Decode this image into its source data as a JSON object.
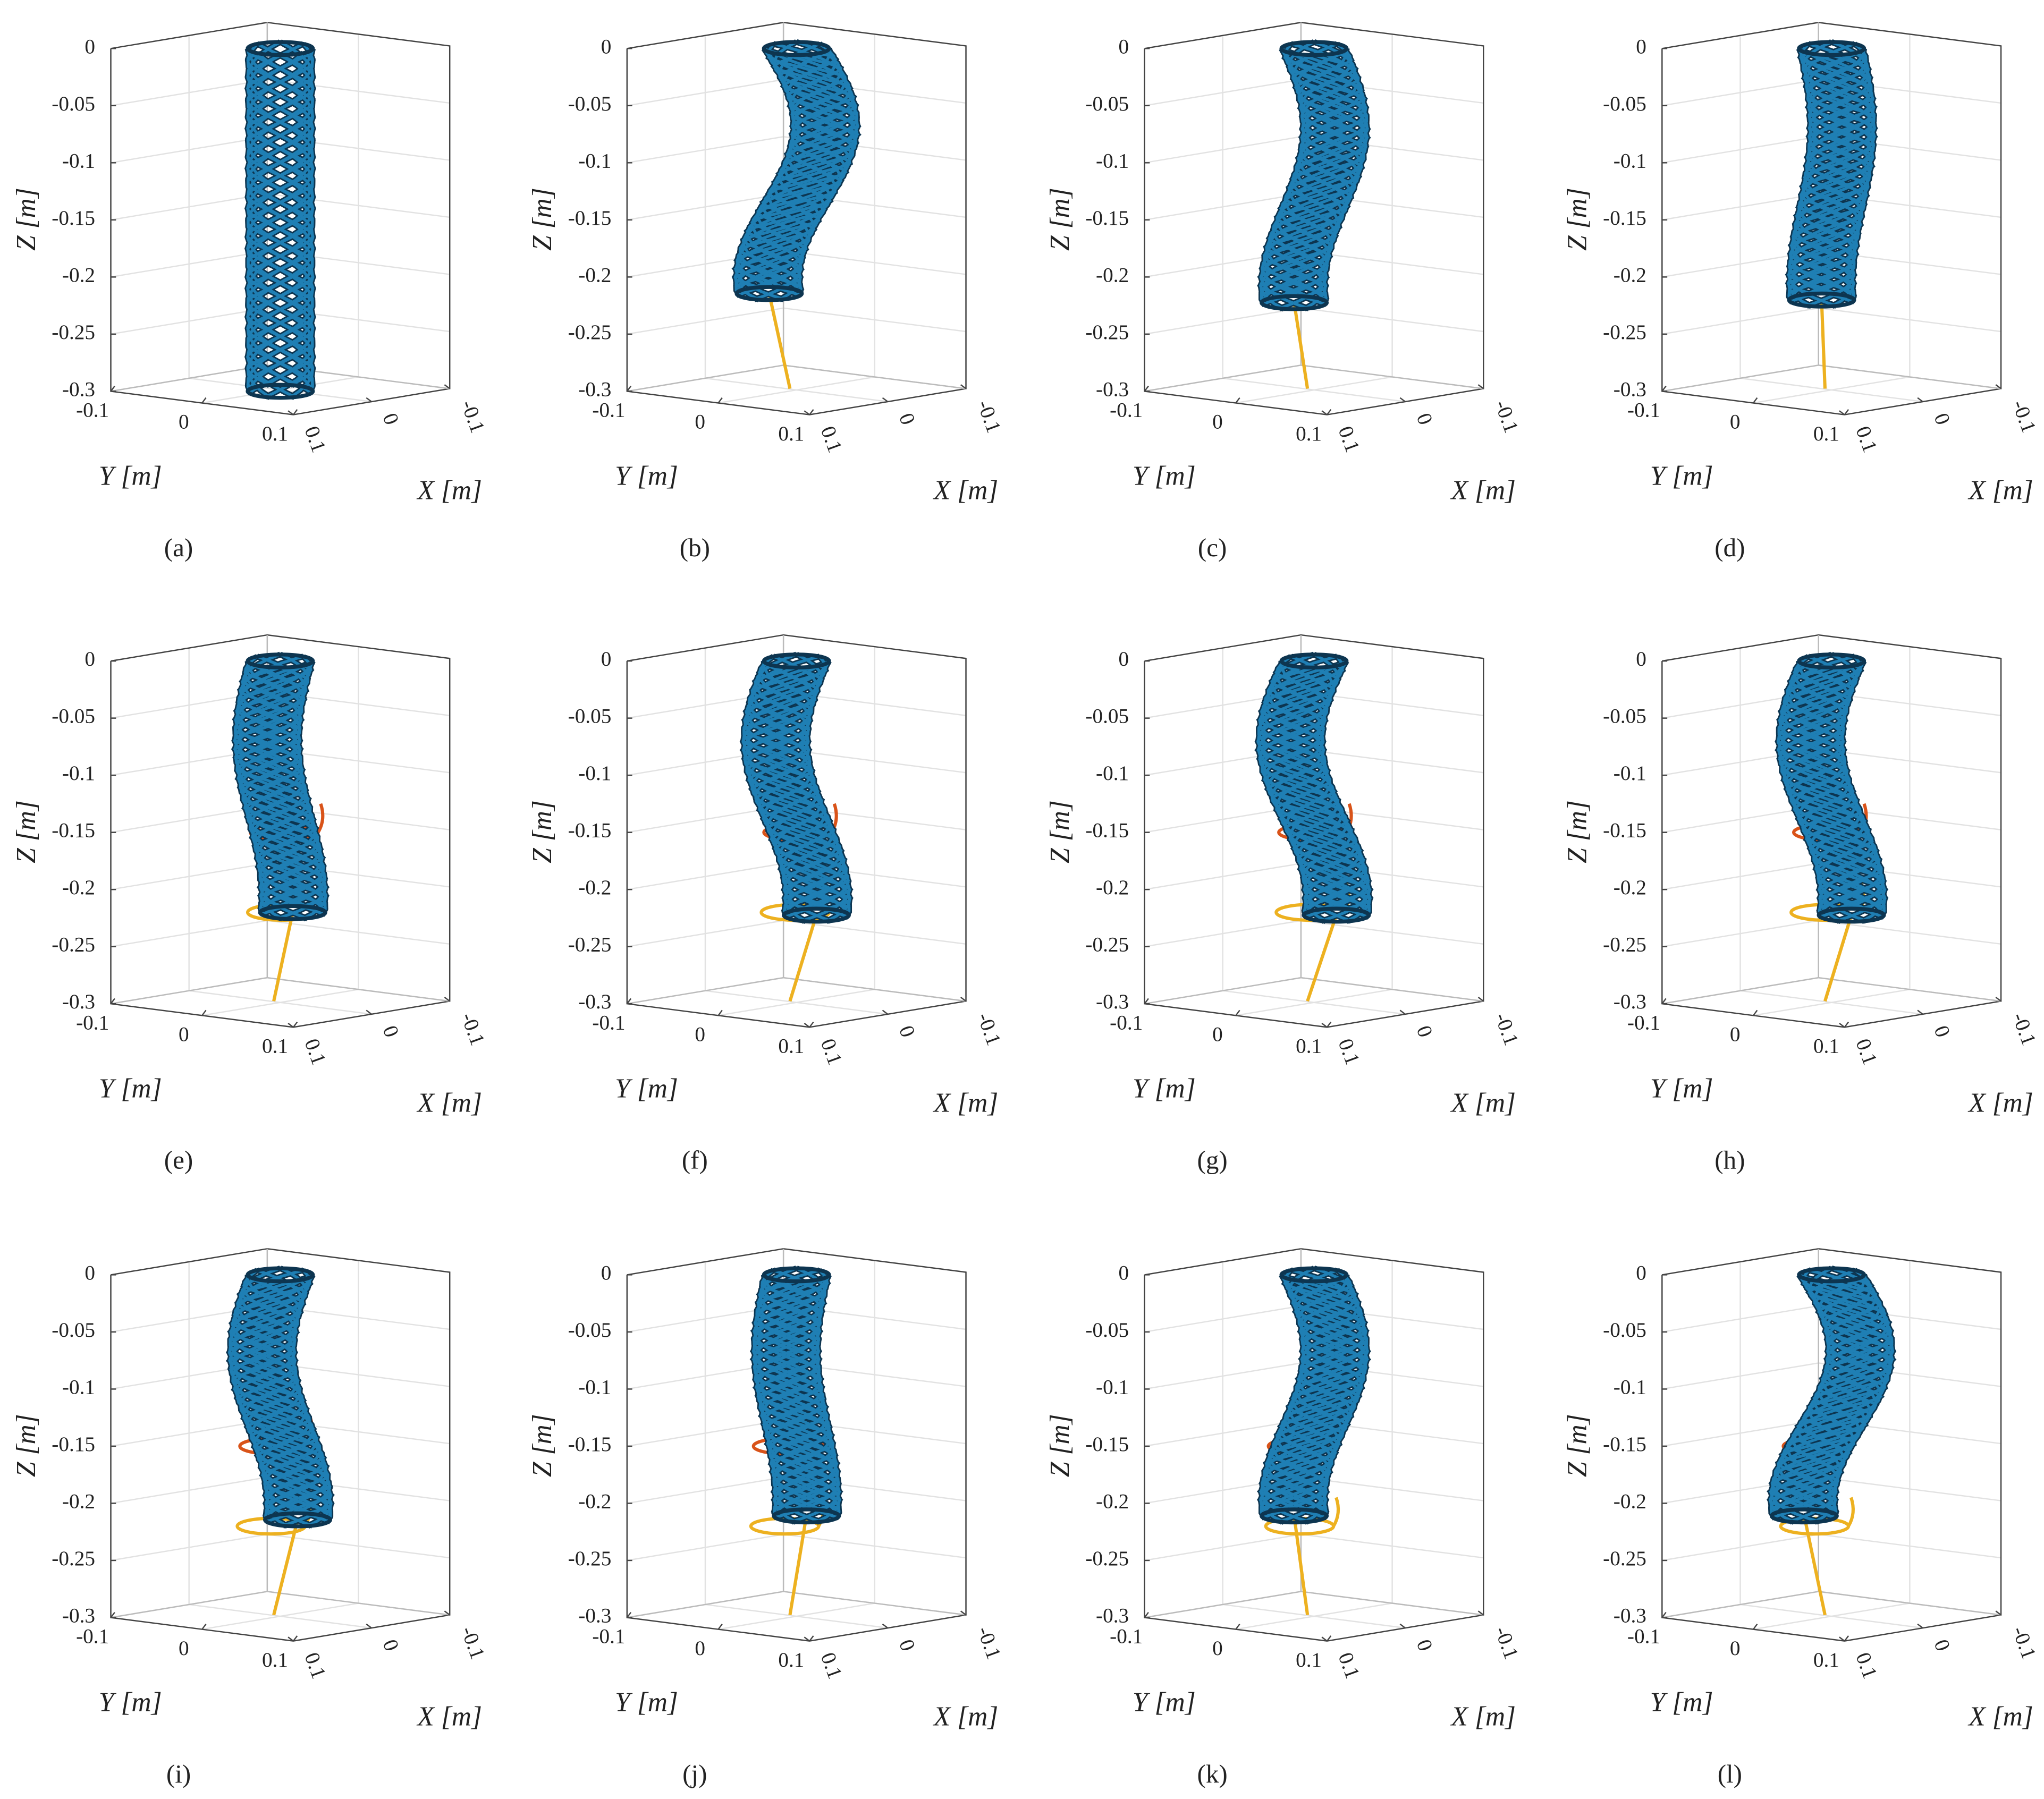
{
  "chart_data": [
    {
      "type": "lattice",
      "caption": "(a)",
      "xlabel": "X [m]",
      "ylabel": "Y [m]",
      "zlabel": "Z [m]",
      "color": "#1f7fb4",
      "xlim": [
        -0.1,
        0.1
      ],
      "ylim": [
        -0.1,
        0.1
      ],
      "zlim": [
        -0.3,
        0
      ],
      "xticks": [
        -0.1,
        0,
        0.1
      ],
      "yticks": [
        -0.1,
        0,
        0.1
      ],
      "zticks": [
        -0.3,
        -0.25,
        -0.2,
        -0.15,
        -0.1,
        -0.05,
        0
      ],
      "grid": true
    },
    {
      "type": "lattice",
      "caption": "(b)",
      "xlabel": "X [m]",
      "ylabel": "Y [m]",
      "zlabel": "Z [m]",
      "color": "#1f7fb4",
      "xlim": [
        -0.1,
        0.1
      ],
      "ylim": [
        -0.1,
        0.1
      ],
      "zlim": [
        -0.3,
        0
      ],
      "xticks": [
        -0.1,
        0,
        0.1
      ],
      "yticks": [
        -0.1,
        0,
        0.1
      ],
      "zticks": [
        -0.3,
        -0.25,
        -0.2,
        -0.15,
        -0.1,
        -0.05,
        0
      ],
      "grid": true
    },
    {
      "type": "lattice",
      "caption": "(c)",
      "xlabel": "X [m]",
      "ylabel": "Y [m]",
      "zlabel": "Z [m]",
      "color": "#1f7fb4",
      "xlim": [
        -0.1,
        0.1
      ],
      "ylim": [
        -0.1,
        0.1
      ],
      "zlim": [
        -0.3,
        0
      ],
      "xticks": [
        -0.1,
        0,
        0.1
      ],
      "yticks": [
        -0.1,
        0,
        0.1
      ],
      "zticks": [
        -0.3,
        -0.25,
        -0.2,
        -0.15,
        -0.1,
        -0.05,
        0
      ],
      "grid": true
    },
    {
      "type": "lattice",
      "caption": "(d)",
      "xlabel": "X [m]",
      "ylabel": "Y [m]",
      "zlabel": "Z [m]",
      "color": "#1f7fb4",
      "xlim": [
        -0.1,
        0.1
      ],
      "ylim": [
        -0.1,
        0.1
      ],
      "zlim": [
        -0.3,
        0
      ],
      "xticks": [
        -0.1,
        0,
        0.1
      ],
      "yticks": [
        -0.1,
        0,
        0.1
      ],
      "zticks": [
        -0.3,
        -0.25,
        -0.2,
        -0.15,
        -0.1,
        -0.05,
        0
      ],
      "grid": true
    },
    {
      "type": "lattice",
      "caption": "(e)",
      "xlabel": "X [m]",
      "ylabel": "Y [m]",
      "zlabel": "Z [m]",
      "color": "#1f7fb4",
      "xlim": [
        -0.1,
        0.1
      ],
      "ylim": [
        -0.1,
        0.1
      ],
      "zlim": [
        -0.3,
        0
      ],
      "xticks": [
        -0.1,
        0,
        0.1
      ],
      "yticks": [
        -0.1,
        0,
        0.1
      ],
      "zticks": [
        -0.3,
        -0.25,
        -0.2,
        -0.15,
        -0.1,
        -0.05,
        0
      ],
      "grid": true
    },
    {
      "type": "lattice",
      "caption": "(f)",
      "xlabel": "X [m]",
      "ylabel": "Y [m]",
      "zlabel": "Z [m]",
      "color": "#1f7fb4",
      "xlim": [
        -0.1,
        0.1
      ],
      "ylim": [
        -0.1,
        0.1
      ],
      "zlim": [
        -0.3,
        0
      ],
      "xticks": [
        -0.1,
        0,
        0.1
      ],
      "yticks": [
        -0.1,
        0,
        0.1
      ],
      "zticks": [
        -0.3,
        -0.25,
        -0.2,
        -0.15,
        -0.1,
        -0.05,
        0
      ],
      "grid": true
    },
    {
      "type": "lattice",
      "caption": "(g)",
      "xlabel": "X [m]",
      "ylabel": "Y [m]",
      "zlabel": "Z [m]",
      "color": "#1f7fb4",
      "xlim": [
        -0.1,
        0.1
      ],
      "ylim": [
        -0.1,
        0.1
      ],
      "zlim": [
        -0.3,
        0
      ],
      "xticks": [
        -0.1,
        0,
        0.1
      ],
      "yticks": [
        -0.1,
        0,
        0.1
      ],
      "zticks": [
        -0.3,
        -0.25,
        -0.2,
        -0.15,
        -0.1,
        -0.05,
        0
      ],
      "grid": true
    },
    {
      "type": "lattice",
      "caption": "(h)",
      "xlabel": "X [m]",
      "ylabel": "Y [m]",
      "zlabel": "Z [m]",
      "color": "#1f7fb4",
      "xlim": [
        -0.1,
        0.1
      ],
      "ylim": [
        -0.1,
        0.1
      ],
      "zlim": [
        -0.3,
        0
      ],
      "xticks": [
        -0.1,
        0,
        0.1
      ],
      "yticks": [
        -0.1,
        0,
        0.1
      ],
      "zticks": [
        -0.3,
        -0.25,
        -0.2,
        -0.15,
        -0.1,
        -0.05,
        0
      ],
      "grid": true
    },
    {
      "type": "lattice",
      "caption": "(i)",
      "xlabel": "X [m]",
      "ylabel": "Y [m]",
      "zlabel": "Z [m]",
      "color": "#1f7fb4",
      "xlim": [
        -0.1,
        0.1
      ],
      "ylim": [
        -0.1,
        0.1
      ],
      "zlim": [
        -0.3,
        0
      ],
      "xticks": [
        -0.1,
        0,
        0.1
      ],
      "yticks": [
        -0.1,
        0,
        0.1
      ],
      "zticks": [
        -0.3,
        -0.25,
        -0.2,
        -0.15,
        -0.1,
        -0.05,
        0
      ],
      "grid": true
    },
    {
      "type": "lattice",
      "caption": "(j)",
      "xlabel": "X [m]",
      "ylabel": "Y [m]",
      "zlabel": "Z [m]",
      "color": "#1f7fb4",
      "xlim": [
        -0.1,
        0.1
      ],
      "ylim": [
        -0.1,
        0.1
      ],
      "zlim": [
        -0.3,
        0
      ],
      "xticks": [
        -0.1,
        0,
        0.1
      ],
      "yticks": [
        -0.1,
        0,
        0.1
      ],
      "zticks": [
        -0.3,
        -0.25,
        -0.2,
        -0.15,
        -0.1,
        -0.05,
        0
      ],
      "grid": true
    },
    {
      "type": "lattice",
      "caption": "(k)",
      "xlabel": "X [m]",
      "ylabel": "Y [m]",
      "zlabel": "Z [m]",
      "color": "#1f7fb4",
      "xlim": [
        -0.1,
        0.1
      ],
      "ylim": [
        -0.1,
        0.1
      ],
      "zlim": [
        -0.3,
        0
      ],
      "xticks": [
        -0.1,
        0,
        0.1
      ],
      "yticks": [
        -0.1,
        0,
        0.1
      ],
      "zticks": [
        -0.3,
        -0.25,
        -0.2,
        -0.15,
        -0.1,
        -0.05,
        0
      ],
      "grid": true
    },
    {
      "type": "lattice",
      "caption": "(l)",
      "xlabel": "X [m]",
      "ylabel": "Y [m]",
      "zlabel": "Z [m]",
      "color": "#1f7fb4",
      "xlim": [
        -0.1,
        0.1
      ],
      "ylim": [
        -0.1,
        0.1
      ],
      "zlim": [
        -0.3,
        0
      ],
      "xticks": [
        -0.1,
        0,
        0.1
      ],
      "yticks": [
        -0.1,
        0,
        0.1
      ],
      "zticks": [
        -0.3,
        -0.25,
        -0.2,
        -0.15,
        -0.1,
        -0.05,
        0
      ],
      "grid": true
    }
  ]
}
